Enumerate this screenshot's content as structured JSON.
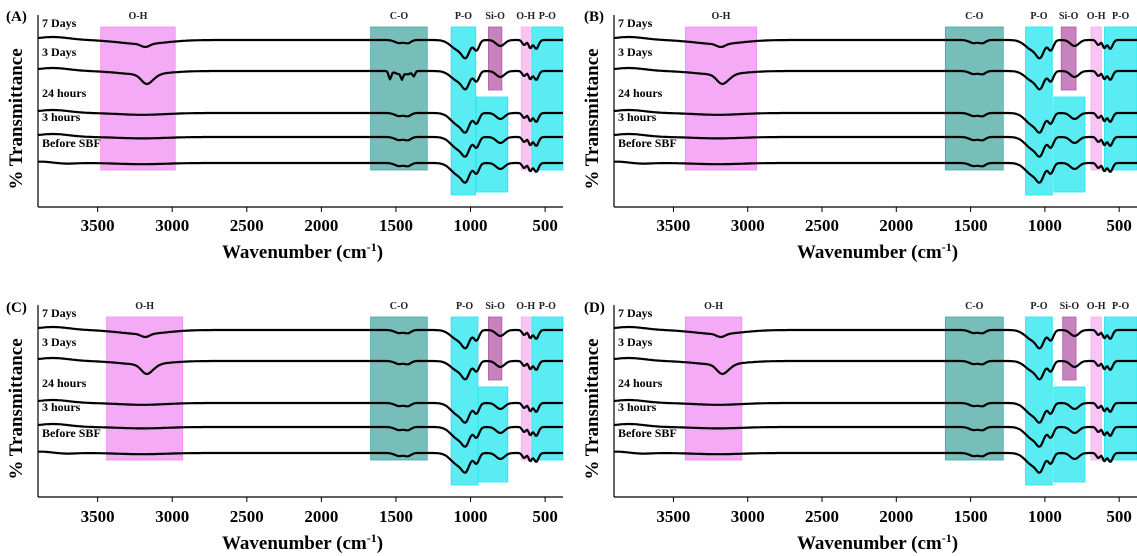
{
  "figure": {
    "panels": [
      "(A)",
      "(B)",
      "(C)",
      "(D)"
    ]
  },
  "chart_data": [
    {
      "type": "line",
      "panel_label": "(A)",
      "xlabel": "Wavenumber (cm",
      "xlabel_sup": "-1",
      "xlabel_close": ")",
      "ylabel": "% Transmittance",
      "xlim": [
        3900,
        380
      ],
      "xticks": [
        3500,
        3000,
        2500,
        2000,
        1500,
        1000,
        500
      ],
      "regions": [
        {
          "label": "O-H",
          "from": 3480,
          "to": 2980,
          "color": "#f08ef0",
          "band": "full"
        },
        {
          "label": "C-O",
          "from": 1670,
          "to": 1290,
          "color": "#4aa7a2",
          "band": "full"
        },
        {
          "label": "P-O",
          "from": 1130,
          "to": 965,
          "color": "#22e6ef",
          "band": "full"
        },
        {
          "label": "Si-O",
          "from": 880,
          "to": 790,
          "color": "#b45aa8",
          "band": "top"
        },
        {
          "label": "O-H",
          "from": 660,
          "to": 600,
          "color": "#f6b0ee",
          "band": "full"
        },
        {
          "label": "P-O",
          "from": 590,
          "to": 380,
          "color": "#22e6ef",
          "band": "full"
        },
        {
          "label": "",
          "from": 960,
          "to": 750,
          "color": "#22e6ef",
          "band": "bottom"
        }
      ],
      "series": [
        {
          "name": "7 Days"
        },
        {
          "name": "3 Days"
        },
        {
          "name": "24 hours"
        },
        {
          "name": "3 hours"
        },
        {
          "name": "Before SBF"
        }
      ]
    },
    {
      "type": "line",
      "panel_label": "(B)",
      "xlabel": "Wavenumber (cm",
      "xlabel_sup": "-1",
      "xlabel_close": ")",
      "ylabel": "% Transmittance",
      "xlim": [
        3900,
        380
      ],
      "xticks": [
        3500,
        3000,
        2500,
        2000,
        1500,
        1000,
        500
      ],
      "regions": [
        {
          "label": "O-H",
          "from": 3420,
          "to": 2940,
          "color": "#f08ef0",
          "band": "full"
        },
        {
          "label": "C-O",
          "from": 1670,
          "to": 1280,
          "color": "#4aa7a2",
          "band": "full"
        },
        {
          "label": "P-O",
          "from": 1130,
          "to": 950,
          "color": "#22e6ef",
          "band": "full"
        },
        {
          "label": "Si-O",
          "from": 890,
          "to": 790,
          "color": "#b45aa8",
          "band": "top"
        },
        {
          "label": "O-H",
          "from": 690,
          "to": 620,
          "color": "#f6b0ee",
          "band": "full"
        },
        {
          "label": "P-O",
          "from": 600,
          "to": 380,
          "color": "#22e6ef",
          "band": "full"
        },
        {
          "label": "",
          "from": 940,
          "to": 730,
          "color": "#22e6ef",
          "band": "bottom"
        }
      ],
      "series": [
        {
          "name": "7 Days"
        },
        {
          "name": "3 Days"
        },
        {
          "name": "24 hours"
        },
        {
          "name": "3 hours"
        },
        {
          "name": "Before SBF"
        }
      ]
    },
    {
      "type": "line",
      "panel_label": "(C)",
      "xlabel": "Wavenumber (cm",
      "xlabel_sup": "-1",
      "xlabel_close": ")",
      "ylabel": "% Transmittance",
      "xlim": [
        3900,
        380
      ],
      "xticks": [
        3500,
        3000,
        2500,
        2000,
        1500,
        1000,
        500
      ],
      "regions": [
        {
          "label": "O-H",
          "from": 3440,
          "to": 2930,
          "color": "#f08ef0",
          "band": "full"
        },
        {
          "label": "C-O",
          "from": 1670,
          "to": 1290,
          "color": "#4aa7a2",
          "band": "full"
        },
        {
          "label": "P-O",
          "from": 1130,
          "to": 950,
          "color": "#22e6ef",
          "band": "full"
        },
        {
          "label": "Si-O",
          "from": 880,
          "to": 790,
          "color": "#b45aa8",
          "band": "top"
        },
        {
          "label": "O-H",
          "from": 660,
          "to": 600,
          "color": "#f6b0ee",
          "band": "full"
        },
        {
          "label": "P-O",
          "from": 590,
          "to": 380,
          "color": "#22e6ef",
          "band": "full"
        },
        {
          "label": "",
          "from": 950,
          "to": 750,
          "color": "#22e6ef",
          "band": "bottom"
        }
      ],
      "series": [
        {
          "name": "7 Days"
        },
        {
          "name": "3 Days"
        },
        {
          "name": "24 hours"
        },
        {
          "name": "3 hours"
        },
        {
          "name": "Before SBF"
        }
      ]
    },
    {
      "type": "line",
      "panel_label": "(D)",
      "xlabel": "Wavenumber (cm",
      "xlabel_sup": "-1",
      "xlabel_close": ")",
      "ylabel": "% Transmittance",
      "xlim": [
        3900,
        380
      ],
      "xticks": [
        3500,
        3000,
        2500,
        2000,
        1500,
        1000,
        500
      ],
      "regions": [
        {
          "label": "O-H",
          "from": 3420,
          "to": 3040,
          "color": "#f08ef0",
          "band": "full"
        },
        {
          "label": "C-O",
          "from": 1670,
          "to": 1280,
          "color": "#4aa7a2",
          "band": "full"
        },
        {
          "label": "P-O",
          "from": 1130,
          "to": 950,
          "color": "#22e6ef",
          "band": "full"
        },
        {
          "label": "Si-O",
          "from": 880,
          "to": 790,
          "color": "#b45aa8",
          "band": "top"
        },
        {
          "label": "O-H",
          "from": 690,
          "to": 620,
          "color": "#f6b0ee",
          "band": "full"
        },
        {
          "label": "P-O",
          "from": 600,
          "to": 380,
          "color": "#22e6ef",
          "band": "full"
        },
        {
          "label": "",
          "from": 940,
          "to": 730,
          "color": "#22e6ef",
          "band": "bottom"
        }
      ],
      "series": [
        {
          "name": "7 Days"
        },
        {
          "name": "3 Days"
        },
        {
          "name": "24 hours"
        },
        {
          "name": "3 hours"
        },
        {
          "name": "Before SBF"
        }
      ]
    }
  ]
}
